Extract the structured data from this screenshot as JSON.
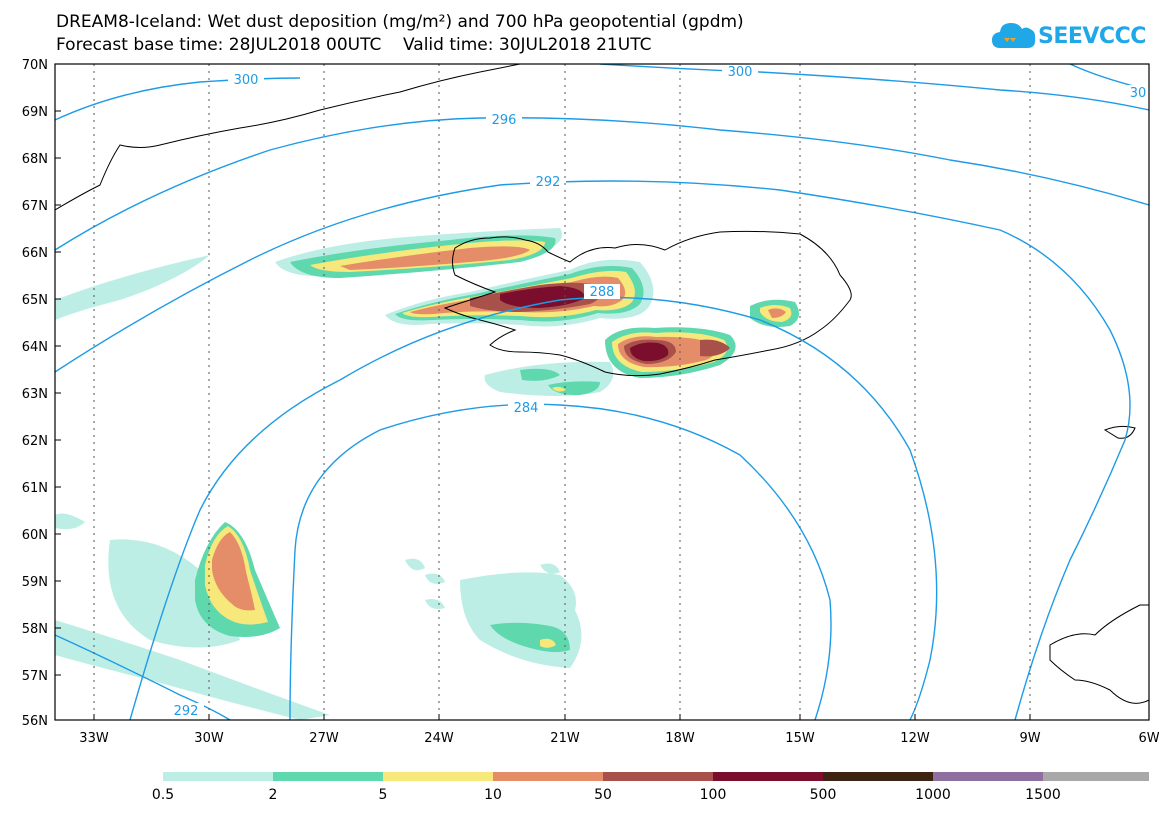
{
  "header": {
    "title_line1": "DREAM8-Iceland: Wet dust deposition (mg/m²) and 700 hPa geopotential (gpdm)",
    "title_line2": "Forecast base time: 28JUL2018 00UTC    Valid time: 30JUL2018 21UTC"
  },
  "logo": {
    "text": "SEEVCCC",
    "icon": "cloud-icon",
    "color": "#1fa7e8"
  },
  "map": {
    "lat_labels": [
      "70N",
      "69N",
      "68N",
      "67N",
      "66N",
      "65N",
      "64N",
      "63N",
      "62N",
      "61N",
      "60N",
      "59N",
      "58N",
      "57N",
      "56N"
    ],
    "lon_labels": [
      "33W",
      "30W",
      "27W",
      "24W",
      "21W",
      "18W",
      "15W",
      "12W",
      "9W",
      "6W"
    ],
    "contour_labels": [
      "300",
      "300",
      "30",
      "296",
      "292",
      "288",
      "284",
      "292"
    ],
    "contour_color": "#1e9be6",
    "coastline_color": "#000000"
  },
  "colorbar": {
    "labels": [
      "0.5",
      "2",
      "5",
      "10",
      "50",
      "100",
      "500",
      "1000",
      "1500"
    ],
    "colors": [
      "#bdeee6",
      "#5fd8ae",
      "#f6e87a",
      "#e58d68",
      "#a8504a",
      "#7a0e2c",
      "#3d2412",
      "#8e6fa0",
      "#a8a8a8"
    ]
  }
}
